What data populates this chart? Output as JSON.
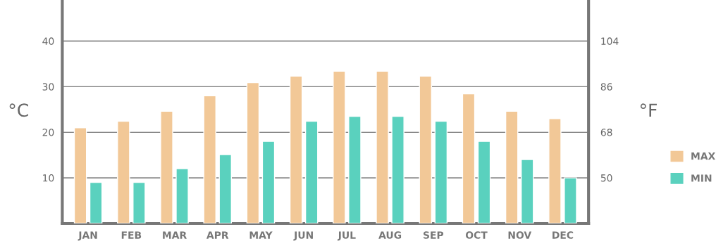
{
  "chart_data": {
    "type": "bar",
    "categories": [
      "JAN",
      "FEB",
      "MAR",
      "APR",
      "MAY",
      "JUN",
      "JUL",
      "AUG",
      "SEP",
      "OCT",
      "NOV",
      "DEC"
    ],
    "series": [
      {
        "name": "MAX",
        "color": "#f2c897",
        "values": [
          21,
          22.4,
          24.6,
          28,
          30.9,
          32.3,
          33.4,
          33.4,
          32.3,
          28.4,
          24.6,
          23
        ]
      },
      {
        "name": "MIN",
        "color": "#5ad1be",
        "values": [
          9,
          9,
          12,
          15.1,
          18,
          22.4,
          23.5,
          23.5,
          22.4,
          18,
          14,
          10
        ]
      }
    ],
    "ylabel": "°C",
    "y2label": "°F",
    "ylim": [
      0,
      49
    ],
    "yticks": [
      10,
      20,
      30,
      40
    ],
    "y2lim": [
      32,
      120.2
    ],
    "y2ticks": [
      50,
      68,
      86,
      104
    ],
    "grid": "y",
    "legend": "right"
  }
}
